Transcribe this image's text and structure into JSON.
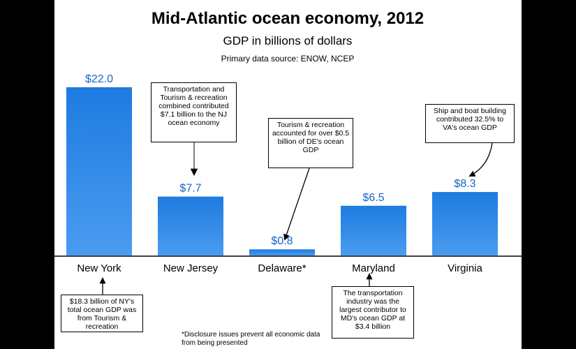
{
  "chart_data": {
    "type": "bar",
    "title": "Mid-Atlantic ocean economy, 2012",
    "subtitle": "GDP in billions of dollars",
    "source": "Primary data source: ENOW, NCEP",
    "categories": [
      "New York",
      "New Jersey",
      "Delaware*",
      "Maryland",
      "Virginia"
    ],
    "values": [
      22.0,
      7.7,
      0.8,
      6.5,
      8.3
    ],
    "value_labels": [
      "$22.0",
      "$7.7",
      "$0.8",
      "$6.5",
      "$8.3"
    ],
    "ylim": [
      0,
      22.0
    ],
    "grid": false,
    "bar_color": "#1e7be0",
    "annotations": [
      "$18.3 billion of NY's total ocean GDP was from Tourism & recreation",
      "Transportation and Tourism & recreation combined contributed $7.1 billion to the NJ ocean economy",
      "Tourism & recreation accounted for over $0.5 billion of DE's ocean GDP",
      "The transportation industry was the largest contributor to MD's ocean GDP at $3.4 billion",
      "Ship and boat building contributed 32.5% to VA's ocean GDP"
    ],
    "footnote": "*Disclosure issues prevent all economic data from being presented"
  }
}
